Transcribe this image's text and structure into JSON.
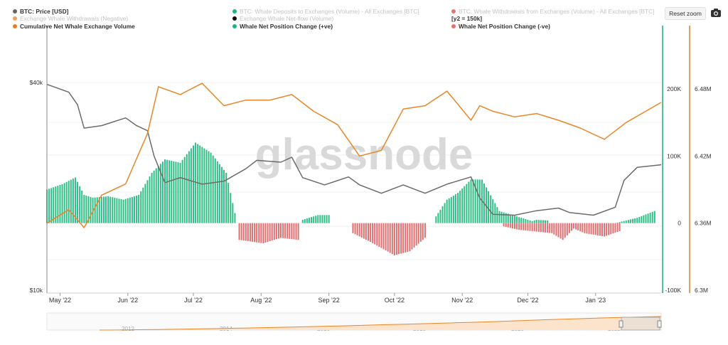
{
  "legend": [
    {
      "label": "BTC: Price [USD]",
      "color": "#666666",
      "active": true
    },
    {
      "label": "BTC: Whale Deposits to Exchanges (Volume) - All Exchanges [BTC]",
      "color": "#1fb57c",
      "active": false
    },
    {
      "label": "BTC: Whale Withdrawals from Exchanges (Volume) - All Exchanges [BTC]",
      "color": "#e57373",
      "active": false
    },
    {
      "label": "Exchange Whale Withdrawals (Negative)",
      "color": "#f0a060",
      "active": false
    },
    {
      "label": "Exchange Whale Net-flow (Volume)",
      "color": "#111111",
      "active": false
    },
    {
      "label": "[y2 = 150k]",
      "color": "",
      "active": true
    },
    {
      "label": "Cumulative Net Whale Exchange Volume",
      "color": "#e57f1f",
      "active": true
    },
    {
      "label": "Whale Net Position Change (+ve)",
      "color": "#1fb57c",
      "active": true
    },
    {
      "label": "Whale Net Position Change (-ve)",
      "color": "#e57373",
      "active": true
    }
  ],
  "controls": {
    "reset_zoom": "Reset zoom",
    "export_icon": "camera-icon"
  },
  "watermark": "glassnode",
  "chart_data": {
    "type": "line",
    "x_labels": [
      "May '22",
      "Jun '22",
      "Jul '22",
      "Aug '22",
      "Sep '22",
      "Oct '22",
      "Nov '22",
      "Dec '22",
      "Jan '23"
    ],
    "x_range": [
      "2022-04-25",
      "2023-01-31"
    ],
    "y_left": {
      "label": "BTC: Price [USD]",
      "ticks": [
        "$40k",
        "$10k"
      ],
      "scale": "log",
      "range": [
        10000,
        40000
      ]
    },
    "y_mid": {
      "ticks": [
        "200K",
        "100K",
        "0",
        "-100K"
      ],
      "range": [
        -100000,
        200000
      ]
    },
    "y_right": {
      "ticks": [
        "6.48M",
        "6.42M",
        "6.36M",
        "6.3M"
      ],
      "range": [
        6300000,
        6480000
      ]
    },
    "series": [
      {
        "name": "BTC: Price [USD]",
        "axis": "left",
        "color": "#6b6b6b",
        "dates": [
          "2022-04-25",
          "2022-04-30",
          "2022-05-05",
          "2022-05-09",
          "2022-05-12",
          "2022-05-20",
          "2022-05-31",
          "2022-06-05",
          "2022-06-10",
          "2022-06-13",
          "2022-06-18",
          "2022-06-25",
          "2022-07-05",
          "2022-07-15",
          "2022-07-25",
          "2022-07-30",
          "2022-08-10",
          "2022-08-15",
          "2022-08-20",
          "2022-08-30",
          "2022-09-10",
          "2022-09-15",
          "2022-09-25",
          "2022-10-05",
          "2022-10-15",
          "2022-10-25",
          "2022-11-05",
          "2022-11-09",
          "2022-11-15",
          "2022-11-25",
          "2022-12-05",
          "2022-12-15",
          "2022-12-20",
          "2022-12-31",
          "2023-01-10",
          "2023-01-14",
          "2023-01-20",
          "2023-01-31"
        ],
        "values": [
          39500,
          38500,
          37500,
          34500,
          29500,
          30000,
          31600,
          30000,
          29000,
          24500,
          20500,
          21200,
          20300,
          20700,
          22500,
          23800,
          23500,
          24300,
          21200,
          20200,
          21300,
          20200,
          19100,
          20200,
          19100,
          20300,
          21300,
          18500,
          16600,
          16500,
          17000,
          17300,
          16800,
          16500,
          17400,
          20800,
          22700,
          23100
        ]
      },
      {
        "name": "Cumulative Net Whale Exchange Volume",
        "axis": "right",
        "color": "#e8862a",
        "dates": [
          "2022-04-25",
          "2022-05-05",
          "2022-05-12",
          "2022-05-20",
          "2022-05-31",
          "2022-06-10",
          "2022-06-15",
          "2022-06-25",
          "2022-07-05",
          "2022-07-15",
          "2022-07-25",
          "2022-08-05",
          "2022-08-15",
          "2022-08-25",
          "2022-09-05",
          "2022-09-15",
          "2022-09-25",
          "2022-10-05",
          "2022-10-15",
          "2022-10-25",
          "2022-11-05",
          "2022-11-09",
          "2022-11-15",
          "2022-11-25",
          "2022-12-05",
          "2022-12-15",
          "2022-12-25",
          "2023-01-05",
          "2023-01-15",
          "2023-01-31"
        ],
        "values": [
          6360000,
          6372000,
          6356000,
          6385000,
          6395000,
          6440000,
          6482000,
          6475000,
          6485000,
          6465000,
          6470000,
          6470000,
          6475000,
          6460000,
          6448000,
          6420000,
          6425000,
          6462000,
          6465000,
          6478000,
          6452000,
          6465000,
          6460000,
          6455000,
          6458000,
          6452000,
          6445000,
          6435000,
          6450000,
          6468000
        ]
      },
      {
        "name": "Whale Net Position Change (+ve)",
        "axis": "mid",
        "type": "bar",
        "color": "#2fbf86",
        "dates": [
          "2022-04-25",
          "2022-05-02",
          "2022-05-08",
          "2022-05-12",
          "2022-05-16",
          "2022-05-23",
          "2022-05-30",
          "2022-06-06",
          "2022-06-12",
          "2022-06-18",
          "2022-06-25",
          "2022-07-02",
          "2022-07-09",
          "2022-07-16",
          "2022-07-20",
          "2022-08-20",
          "2022-08-27",
          "2022-09-01",
          "2022-10-20",
          "2022-10-25",
          "2022-10-30",
          "2022-11-05",
          "2022-11-10",
          "2022-11-18",
          "2022-12-03",
          "2022-12-05",
          "2022-12-10",
          "2023-01-10",
          "2023-01-20",
          "2023-01-28"
        ],
        "values": [
          50000,
          58000,
          68000,
          42000,
          38000,
          40000,
          35000,
          42000,
          75000,
          95000,
          90000,
          120000,
          105000,
          75000,
          15000,
          5000,
          12000,
          12000,
          10000,
          35000,
          45000,
          65000,
          65000,
          18000,
          3000,
          5000,
          4000,
          0,
          8000,
          18000
        ]
      },
      {
        "name": "Whale Net Position Change (-ve)",
        "axis": "mid",
        "type": "bar",
        "color": "#e07070",
        "dates": [
          "2022-07-22",
          "2022-08-02",
          "2022-08-10",
          "2022-08-18",
          "2022-09-12",
          "2022-09-20",
          "2022-10-01",
          "2022-10-08",
          "2022-10-15",
          "2022-11-20",
          "2022-11-27",
          "2022-12-12",
          "2022-12-17",
          "2022-12-22",
          "2022-12-27",
          "2023-01-05",
          "2023-01-12"
        ],
        "values": [
          -25000,
          -30000,
          -22000,
          -25000,
          -15000,
          -28000,
          -48000,
          -42000,
          -22000,
          -5000,
          -10000,
          -15000,
          -25000,
          -8000,
          -15000,
          -20000,
          -12000
        ]
      }
    ],
    "navigator": {
      "labels": [
        "2012",
        "2014",
        "2016",
        "2018",
        "2020",
        "2022"
      ],
      "color": "#e8862a"
    }
  }
}
